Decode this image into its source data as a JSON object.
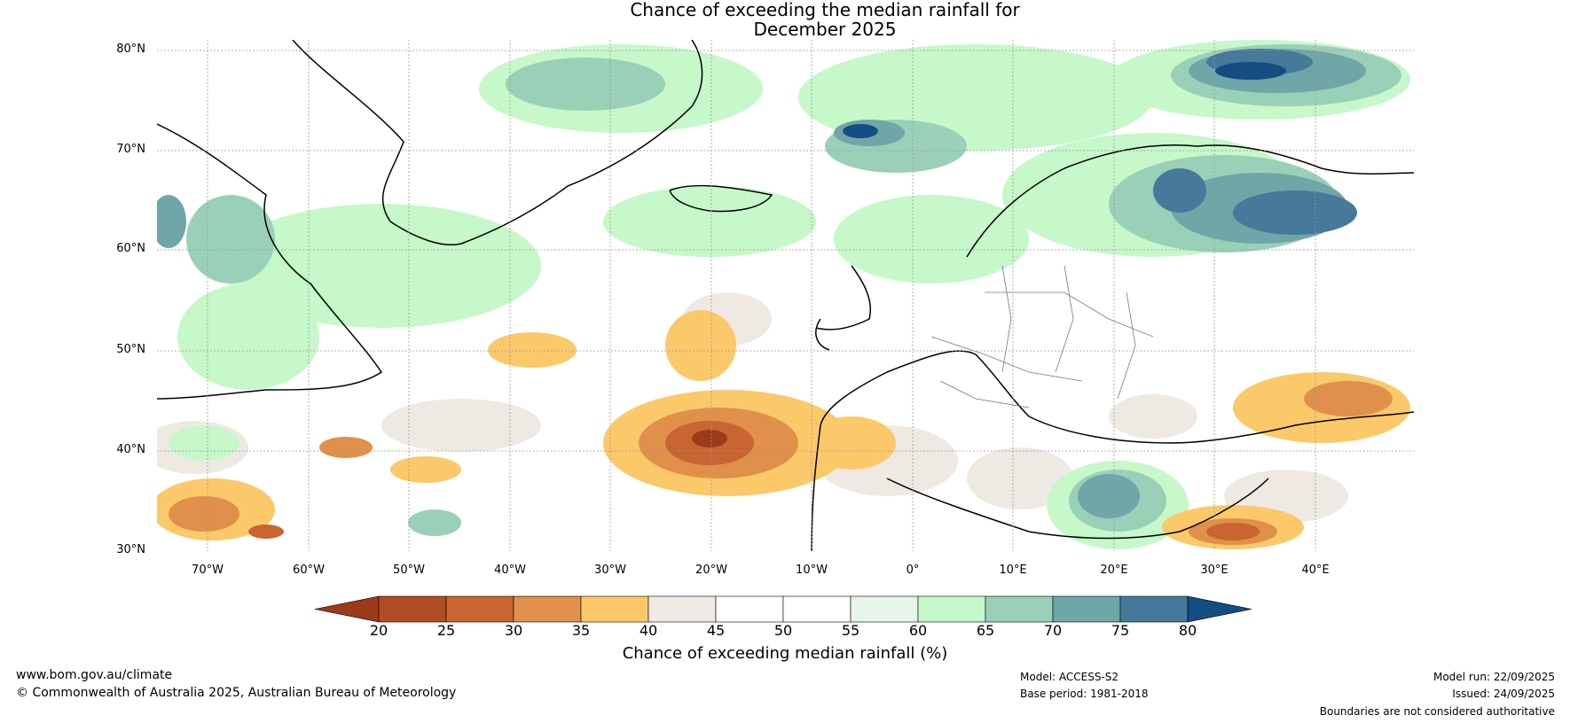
{
  "title": {
    "line1": "Chance of exceeding the median rainfall for",
    "line2": "December 2025"
  },
  "map": {
    "lat_labels": [
      "80°N",
      "70°N",
      "60°N",
      "50°N",
      "40°N",
      "30°N"
    ],
    "lon_labels": [
      "70°W",
      "60°W",
      "50°W",
      "40°W",
      "30°W",
      "20°W",
      "10°W",
      "0°",
      "10°E",
      "20°E",
      "30°E",
      "40°E"
    ]
  },
  "colorbar": {
    "ticks": [
      "20",
      "25",
      "30",
      "35",
      "40",
      "45",
      "50",
      "55",
      "60",
      "65",
      "70",
      "75",
      "80"
    ],
    "label": "Chance of exceeding median rainfall (%)",
    "colors": [
      "#9c3a1c",
      "#b04c26",
      "#c96530",
      "#e0904a",
      "#fbc96a",
      "#efe9e3",
      "#ffffff",
      "#ffffff",
      "#e6f5e8",
      "#c6f8c9",
      "#9bd0b8",
      "#6fa6a7",
      "#46799a",
      "#144d82"
    ]
  },
  "footer": {
    "website": "www.bom.gov.au/climate",
    "copyright": "© Commonwealth of Australia 2025, Australian Bureau of Meteorology",
    "model": "Model: ACCESS-S2",
    "base_period": "Base period: 1981-2018",
    "model_run": "Model run: 22/09/2025",
    "issued": "Issued: 24/09/2025",
    "disclaimer": "Boundaries are not considered authoritative"
  }
}
